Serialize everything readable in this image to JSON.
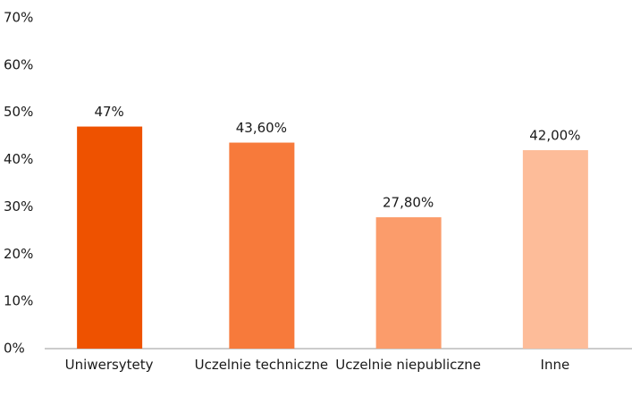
{
  "chart_data": {
    "type": "bar",
    "categories": [
      "Uniwersytety",
      "Uczelnie techniczne",
      "Uczelnie niepubliczne",
      "Inne"
    ],
    "values": [
      47,
      43.6,
      27.8,
      42
    ],
    "value_labels": [
      "47%",
      "43,60%",
      "27,80%",
      "42,00%"
    ],
    "colors": [
      "#ee5200",
      "#f77a3b",
      "#fb9c6b",
      "#fdbc99"
    ],
    "ylim": [
      0,
      70
    ],
    "yticks": [
      {
        "value": 0,
        "label": "0%"
      },
      {
        "value": 10,
        "label": "10%"
      },
      {
        "value": 20,
        "label": "20%"
      },
      {
        "value": 30,
        "label": "30%"
      },
      {
        "value": 40,
        "label": "40%"
      },
      {
        "value": 50,
        "label": "50%"
      },
      {
        "value": 60,
        "label": "60%"
      },
      {
        "value": 70,
        "label": "70%"
      }
    ],
    "grid": false
  }
}
